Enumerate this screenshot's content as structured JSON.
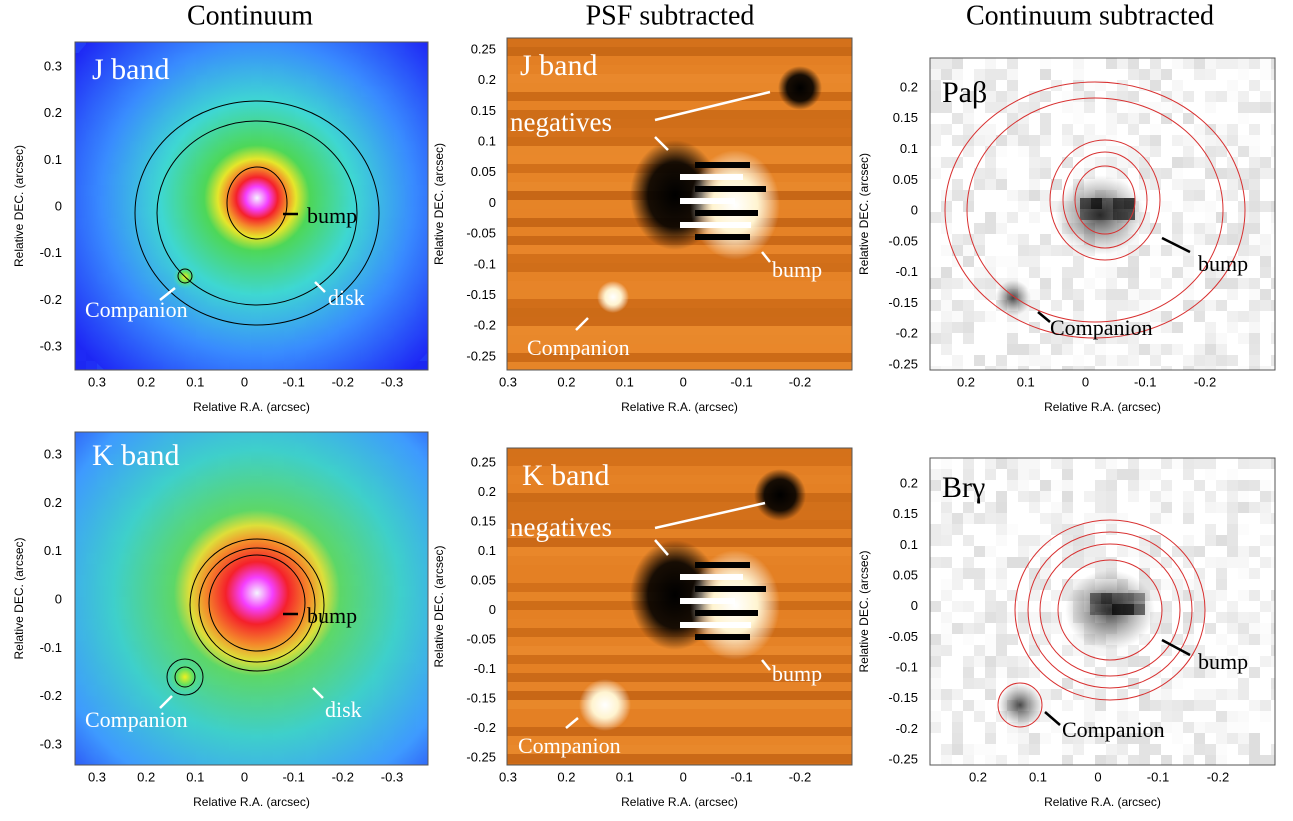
{
  "columns": [
    "Continuum",
    "PSF subtracted",
    "Continuum subtracted"
  ],
  "panels": [
    {
      "label": "J band",
      "xticks": [
        "0.3",
        "0.2",
        "0.1",
        "0",
        "-0.1",
        "-0.2",
        "-0.3"
      ],
      "yticks": [
        "0.3",
        "0.2",
        "0.1",
        "0",
        "-0.1",
        "-0.2",
        "-0.3"
      ],
      "x_label": "Relative R.A. (arcsec)",
      "y_label": "Relative DEC. (arcsec)",
      "annotations": [
        "bump",
        "disk",
        "Companion"
      ]
    },
    {
      "label": "J band",
      "xticks": [
        "0.3",
        "0.2",
        "0.1",
        "0",
        "-0.1",
        "-0.2"
      ],
      "yticks": [
        "0.25",
        "0.2",
        "0.15",
        "0.1",
        "0.05",
        "0",
        "-0.05",
        "-0.1",
        "-0.15",
        "-0.2",
        "-0.25"
      ],
      "x_label": "Relative R.A. (arcsec)",
      "y_label": "Relative DEC. (arcsec)",
      "annotations": [
        "negatives",
        "bump",
        "Companion"
      ]
    },
    {
      "label": "Paβ",
      "xticks": [
        "0.2",
        "0.1",
        "0",
        "-0.1",
        "-0.2"
      ],
      "yticks": [
        "0.2",
        "0.15",
        "0.1",
        "0.05",
        "0",
        "-0.05",
        "-0.1",
        "-0.15",
        "-0.2",
        "-0.25"
      ],
      "x_label": "Relative R.A. (arcsec)",
      "y_label": "Relative DEC. (arcsec)",
      "annotations": [
        "bump",
        "Companion"
      ]
    },
    {
      "label": "K band",
      "xticks": [
        "0.3",
        "0.2",
        "0.1",
        "0",
        "-0.1",
        "-0.2",
        "-0.3"
      ],
      "yticks": [
        "0.3",
        "0.2",
        "0.1",
        "0",
        "-0.1",
        "-0.2",
        "-0.3"
      ],
      "x_label": "Relative R.A. (arcsec)",
      "y_label": "Relative DEC. (arcsec)",
      "annotations": [
        "bump",
        "disk",
        "Companion"
      ]
    },
    {
      "label": "K band",
      "xticks": [
        "0.3",
        "0.2",
        "0.1",
        "0",
        "-0.1",
        "-0.2"
      ],
      "yticks": [
        "0.25",
        "0.2",
        "0.15",
        "0.1",
        "0.05",
        "0",
        "-0.05",
        "-0.1",
        "-0.15",
        "-0.2",
        "-0.25"
      ],
      "x_label": "Relative R.A. (arcsec)",
      "y_label": "Relative DEC. (arcsec)",
      "annotations": [
        "negatives",
        "bump",
        "Companion"
      ]
    },
    {
      "label": "Brγ",
      "xticks": [
        "0.2",
        "0.1",
        "0",
        "-0.1",
        "-0.2"
      ],
      "yticks": [
        "0.2",
        "0.15",
        "0.1",
        "0.05",
        "0",
        "-0.05",
        "-0.1",
        "-0.15",
        "-0.2",
        "-0.25"
      ],
      "x_label": "Relative R.A. (arcsec)",
      "y_label": "Relative DEC. (arcsec)",
      "annotations": [
        "bump",
        "Companion"
      ]
    }
  ]
}
